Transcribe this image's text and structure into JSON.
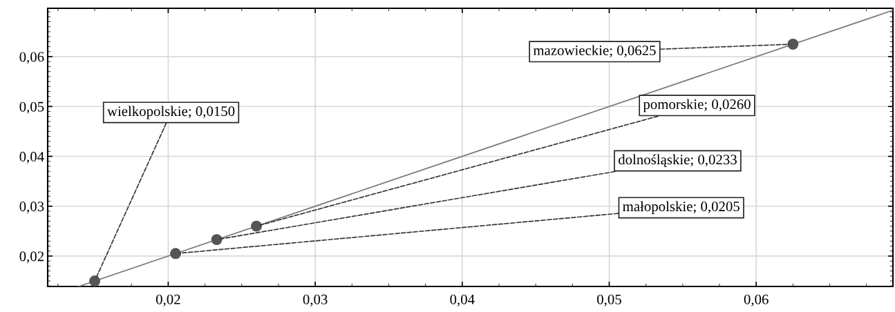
{
  "chart_data": {
    "type": "scatter",
    "x": [
      0.015,
      0.0205,
      0.0233,
      0.026,
      0.0625
    ],
    "series": [
      {
        "type": "line",
        "color": "#7a7a7a",
        "x": [
          0.0139,
          0.0693
        ],
        "values": [
          0.0139,
          0.0693
        ],
        "marker": "none",
        "line_style": "solid"
      },
      {
        "color": "#555555",
        "values": [
          0.015,
          0.0205,
          0.0233,
          0.026,
          0.0625
        ],
        "marker": "circle"
      }
    ],
    "xlim": [
      0.0118,
      0.0693
    ],
    "ylim": [
      0.0139,
      0.0697
    ],
    "xticks": [
      {
        "value": 0.02,
        "label": "0,02"
      },
      {
        "value": 0.03,
        "label": "0,03"
      },
      {
        "value": 0.04,
        "label": "0,04"
      },
      {
        "value": 0.05,
        "label": "0,05"
      },
      {
        "value": 0.06,
        "label": "0,06"
      }
    ],
    "yticks": [
      {
        "value": 0.02,
        "label": "0,02"
      },
      {
        "value": 0.03,
        "label": "0,03"
      },
      {
        "value": 0.04,
        "label": "0,04"
      },
      {
        "value": 0.05,
        "label": "0,05"
      },
      {
        "value": 0.06,
        "label": "0,06"
      }
    ],
    "grid": true,
    "annotations": [
      {
        "text": "wielkopolskie; 0,0150",
        "x": 0.015,
        "y": 0.015
      },
      {
        "text": "małopolskie; 0,0205",
        "x": 0.0205,
        "y": 0.0205
      },
      {
        "text": "dolnośląskie; 0,0233",
        "x": 0.0233,
        "y": 0.0233
      },
      {
        "text": "pomorskie; 0,0260",
        "x": 0.026,
        "y": 0.026
      },
      {
        "text": "mazowieckie; 0,0625",
        "x": 0.0625,
        "y": 0.0625
      }
    ]
  }
}
